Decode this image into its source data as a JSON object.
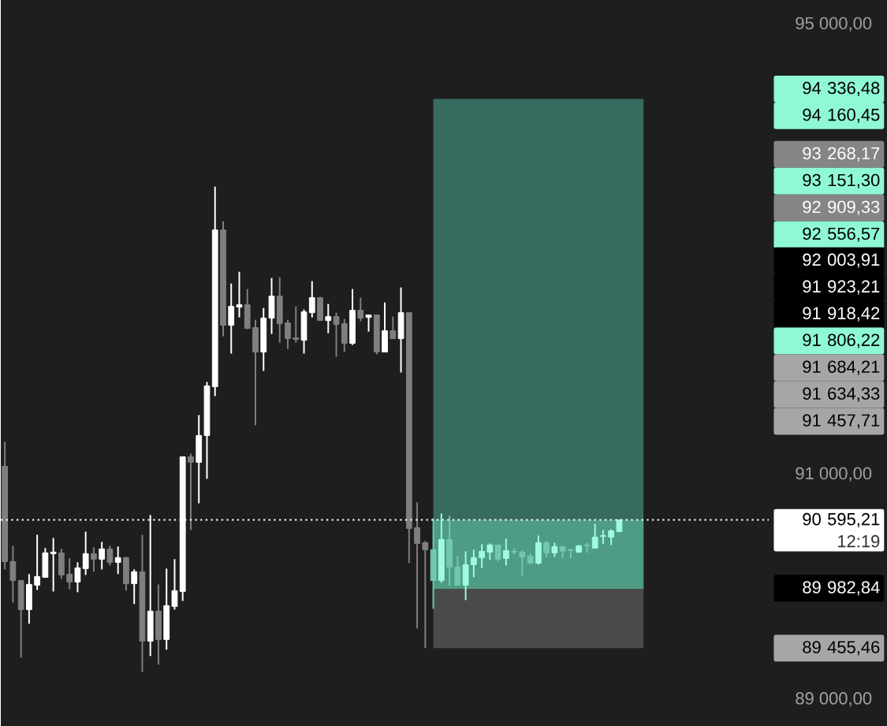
{
  "chart_data": {
    "type": "candlestick",
    "categories": [
      null,
      null,
      null,
      null,
      null,
      null,
      null,
      null,
      null,
      null,
      null,
      null,
      null,
      null,
      null,
      null,
      null,
      null,
      null,
      null,
      null,
      null,
      null,
      null,
      null,
      null,
      null,
      null,
      null,
      null,
      null,
      null,
      null,
      null,
      null,
      null,
      null,
      null,
      null,
      null,
      null,
      null,
      null,
      null,
      null,
      null,
      null,
      null,
      null,
      null,
      null,
      null,
      null,
      null,
      null,
      null,
      null,
      null,
      null,
      null,
      null,
      null,
      null,
      null,
      null,
      null,
      null,
      null,
      null,
      null,
      null,
      null,
      null,
      null,
      null,
      null,
      null,
      null,
      null,
      null,
      null,
      null,
      null,
      null,
      null,
      null,
      null,
      null,
      null,
      null,
      null,
      null,
      null,
      null,
      null
    ],
    "ohlc": [
      [
        91072,
        91289,
        90155,
        90225
      ],
      [
        90225,
        90365,
        89861,
        90057
      ],
      [
        90057,
        90057,
        89371,
        89798
      ],
      [
        89798,
        90113,
        89672,
        90022
      ],
      [
        90015,
        90463,
        89973,
        90092
      ],
      [
        90085,
        90344,
        90085,
        90302
      ],
      [
        90295,
        90435,
        89959,
        90309
      ],
      [
        90302,
        90337,
        90071,
        90106
      ],
      [
        90113,
        90253,
        89980,
        90043
      ],
      [
        90043,
        90218,
        89952,
        90169
      ],
      [
        90162,
        90491,
        90106,
        90295
      ],
      [
        90295,
        90351,
        90134,
        90246
      ],
      [
        90246,
        90400,
        90155,
        90337
      ],
      [
        90337,
        90365,
        90190,
        90218
      ],
      [
        90218,
        90358,
        90113,
        90260
      ],
      [
        90260,
        90267,
        89966,
        90029
      ],
      [
        90029,
        90155,
        89847,
        90134
      ],
      [
        90134,
        90463,
        89245,
        89518
      ],
      [
        89518,
        90638,
        89385,
        89784
      ],
      [
        89784,
        90022,
        89308,
        89532
      ],
      [
        89532,
        90162,
        89441,
        89833
      ],
      [
        89826,
        90246,
        89798,
        89966
      ],
      [
        89959,
        91156,
        89875,
        91156
      ],
      [
        91156,
        91184,
        90505,
        91107
      ],
      [
        91107,
        91527,
        90743,
        91345
      ],
      [
        91345,
        91821,
        90960,
        91786
      ],
      [
        91779,
        93557,
        91695,
        93172
      ],
      [
        93172,
        93249,
        92227,
        92325
      ],
      [
        92325,
        92696,
        92073,
        92493
      ],
      [
        92486,
        92801,
        92395,
        92507
      ],
      [
        92507,
        92647,
        92290,
        92297
      ],
      [
        92304,
        92374,
        91436,
        92087
      ],
      [
        92087,
        92479,
        91919,
        92388
      ],
      [
        92388,
        92745,
        92248,
        92584
      ],
      [
        92584,
        92752,
        92171,
        92339
      ],
      [
        92346,
        92374,
        92115,
        92206
      ],
      [
        92213,
        92493,
        92171,
        92199
      ],
      [
        92192,
        92465,
        92073,
        92444
      ],
      [
        92437,
        92717,
        92395,
        92570
      ],
      [
        92570,
        92577,
        92367,
        92367
      ],
      [
        92367,
        92514,
        92255,
        92402
      ],
      [
        92402,
        92437,
        92045,
        92332
      ],
      [
        92339,
        92381,
        92087,
        92164
      ],
      [
        92164,
        92647,
        92150,
        92458
      ],
      [
        92458,
        92570,
        92360,
        92388
      ],
      [
        92395,
        92416,
        92269,
        92416
      ],
      [
        92416,
        92416,
        92066,
        92087
      ],
      [
        92087,
        92528,
        92087,
        92276
      ],
      [
        92276,
        92402,
        92206,
        92206
      ],
      [
        92206,
        92661,
        91905,
        92437
      ],
      [
        92437,
        92437,
        90211,
        90519
      ],
      [
        90526,
        90750,
        89630,
        90386
      ],
      [
        90393,
        90407,
        89455,
        90330
      ],
      [
        90330,
        90610,
        89805,
        90057
      ],
      [
        90057,
        90652,
        90036,
        90421
      ],
      [
        90421,
        90631,
        90008,
        90176
      ],
      [
        90176,
        90274,
        90015,
        90015
      ],
      [
        90015,
        90316,
        89882,
        90197
      ],
      [
        90197,
        90330,
        90085,
        90260
      ],
      [
        90260,
        90379,
        90169,
        90316
      ],
      [
        90309,
        90386,
        90239,
        90372
      ],
      [
        90372,
        90372,
        90225,
        90246
      ],
      [
        90253,
        90428,
        90190,
        90323
      ],
      [
        90316,
        90344,
        90288,
        90309
      ],
      [
        90309,
        90323,
        90099,
        90267
      ],
      [
        90274,
        90295,
        90204,
        90211
      ],
      [
        90211,
        90456,
        90197,
        90393
      ],
      [
        90393,
        90407,
        90260,
        90302
      ],
      [
        90302,
        90393,
        90267,
        90358
      ],
      [
        90358,
        90358,
        90253,
        90316
      ],
      [
        90330,
        90337,
        90253,
        90323
      ],
      [
        90309,
        90372,
        90302,
        90365
      ],
      [
        90372,
        90393,
        90302,
        90365
      ],
      [
        90344,
        90561,
        90344,
        90442
      ],
      [
        90449,
        90505,
        90379,
        90456
      ],
      [
        90442,
        90512,
        90372,
        90498
      ],
      [
        90491,
        90599,
        90491,
        90595
      ],
      null,
      null,
      null,
      null,
      null,
      null,
      null,
      null,
      null,
      null,
      null,
      null,
      null,
      null,
      null,
      null,
      null,
      null
    ],
    "colors": [
      "#7f7f7f",
      "#7f7f7f",
      "#7f7f7f",
      "#ffffff",
      "#ffffff",
      "#ffffff",
      "#ffffff",
      "#7f7f7f",
      "#7f7f7f",
      "#ffffff",
      "#ffffff",
      "#7f7f7f",
      "#ffffff",
      "#7f7f7f",
      "#ffffff",
      "#7f7f7f",
      "#ffffff",
      "#7f7f7f",
      "#ffffff",
      "#7f7f7f",
      "#ffffff",
      "#ffffff",
      "#ffffff",
      "#7f7f7f",
      "#ffffff",
      "#ffffff",
      "#ffffff",
      "#7f7f7f",
      "#ffffff",
      "#ffffff",
      "#7f7f7f",
      "#7f7f7f",
      "#ffffff",
      "#ffffff",
      "#7f7f7f",
      "#7f7f7f",
      "#7f7f7f",
      "#ffffff",
      "#ffffff",
      "#7f7f7f",
      "#ffffff",
      "#7f7f7f",
      "#7f7f7f",
      "#ffffff",
      "#7f7f7f",
      "#ffffff",
      "#7f7f7f",
      "#ffffff",
      "#7f7f7f",
      "#ffffff",
      "#7f7f7f",
      "#7f7f7f",
      "#7f7f7f",
      "#72c8ad",
      "#9ffce0",
      "#72c8ad",
      "#72c8ad",
      "#9ffce0",
      "#9ffce0",
      "#9ffce0",
      "#9ffce0",
      "#72c8ad",
      "#9ffce0",
      "#72c8ad",
      "#72c8ad",
      "#72c8ad",
      "#9ffce0",
      "#72c8ad",
      "#9ffce0",
      "#72c8ad",
      "#72c8ad",
      "#9ffce0",
      "#72c8ad",
      "#9ffce0",
      "#9ffce0",
      "#9ffce0",
      "#9ffce0",
      null,
      null,
      null,
      null,
      null,
      null,
      null,
      null,
      null,
      null,
      null,
      null,
      null,
      null,
      null,
      null,
      null,
      null
    ],
    "ylim": [
      88762,
      95216
    ],
    "yticks": [
      {
        "value": 89000,
        "label": "89 000,00"
      },
      {
        "value": 91000,
        "label": "91 000,00"
      },
      {
        "value": 95000,
        "label": "95 000,00"
      }
    ],
    "tick_labels": "y",
    "bands": [
      {
        "axis": "y",
        "from": 89982.84,
        "to": 94336.48,
        "color": "#386b5f"
      },
      {
        "axis": "y",
        "from": 89982.84,
        "to": 90595.21,
        "color": "#4e9c85"
      },
      {
        "axis": "y",
        "from": 89455.46,
        "to": 89982.84,
        "color": "#4a4a4a"
      }
    ],
    "ref_lines": [
      {
        "axis": "y",
        "value": 90595.21,
        "label": "90 595,21",
        "line_style": "dotted",
        "color": "#ffffff"
      }
    ],
    "annotations": [
      "94 336,48",
      "94 160,45",
      "93 268,17",
      "93 151,30",
      "92 909,33",
      "92 556,57",
      "92 003,91",
      "91 923,21",
      "91 918,42",
      "91 806,22",
      "91 684,21",
      "91 634,33",
      "91 457,71",
      "89 982,84",
      "89 455,46",
      "12:19"
    ]
  }
}
